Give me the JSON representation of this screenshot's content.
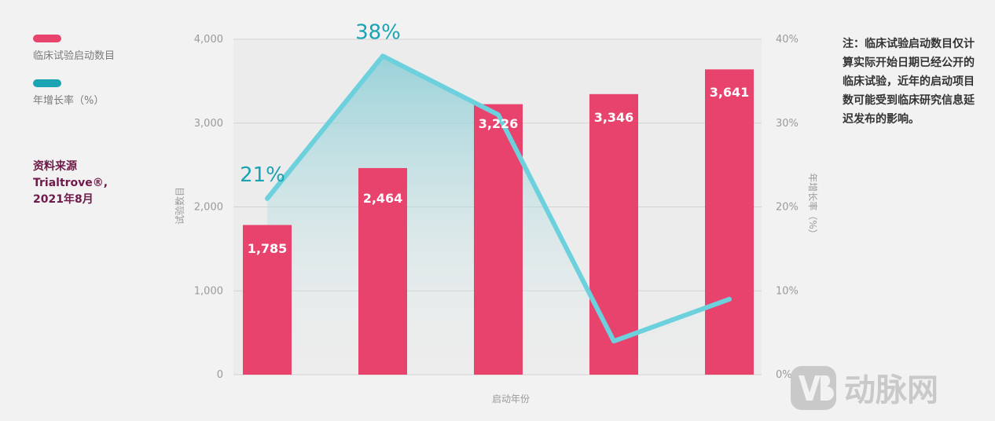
{
  "legend": {
    "bars_label": "临床试验启动数目",
    "line_label": "年增长率（%）",
    "bars_color": "#e8436d",
    "line_color": "#1aa3b3"
  },
  "source": {
    "line1": "资料来源",
    "line2": "Trialtrove®,",
    "line3": "2021年8月"
  },
  "note": {
    "text": "注：临床试验启动数目仅计算实际开始日期已经公开的临床试验，近年的启动项目数可能受到临床研究信息延迟发布的影响。"
  },
  "watermark": {
    "text": "动脉网",
    "logo_icon": "vb-logo-icon"
  },
  "chart_data": {
    "type": "bar",
    "categories": [
      "",
      "",
      "",
      "",
      ""
    ],
    "series": [
      {
        "name": "临床试验启动数目",
        "axis": "left",
        "type": "bar",
        "values": [
          1785,
          2464,
          3226,
          3346,
          3641
        ],
        "value_labels": [
          "1,785",
          "2,464",
          "3,226",
          "3,346",
          "3,641"
        ]
      },
      {
        "name": "年增长率（%）",
        "axis": "right",
        "type": "line",
        "values": [
          21,
          38,
          31,
          4,
          9
        ],
        "value_labels": [
          "21%",
          "38%",
          "",
          "",
          ""
        ]
      }
    ],
    "xlabel": "启动年份",
    "ylabel": "试验数目",
    "y2label": "年增长率（%）",
    "ylim": [
      0,
      4000
    ],
    "y2lim": [
      0,
      40
    ],
    "yticks": [
      "0",
      "1,000",
      "2,000",
      "3,000",
      "4,000"
    ],
    "y2ticks": [
      "0%",
      "10%",
      "20%",
      "30%",
      "40%"
    ],
    "grid": true
  }
}
